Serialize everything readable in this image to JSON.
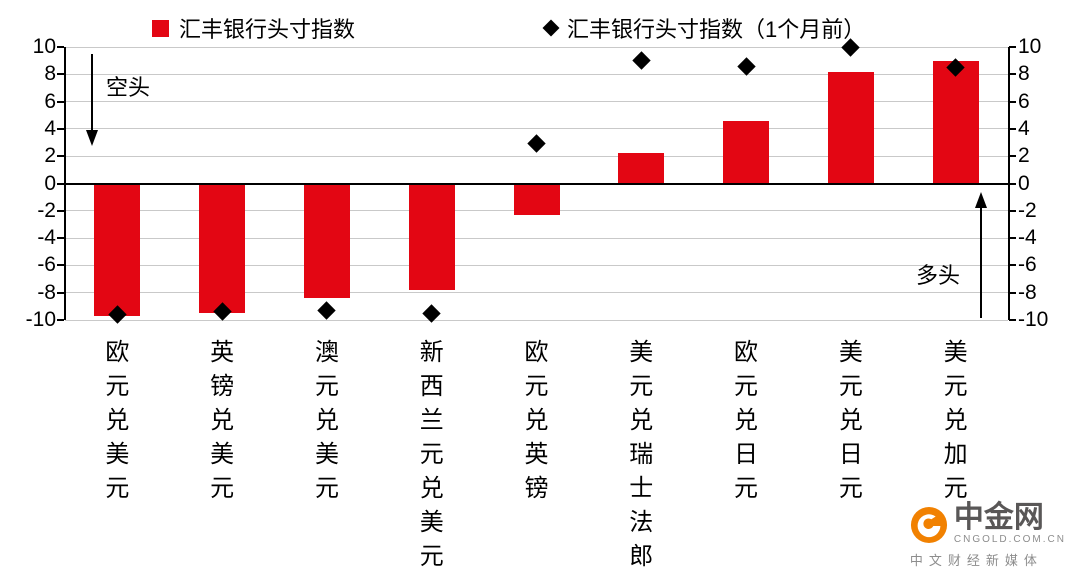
{
  "chart_data": {
    "type": "bar",
    "categories": [
      "欧元兑美元",
      "英镑兑美元",
      "澳元兑美元",
      "新西兰元兑美元",
      "欧元兑英镑",
      "美元兑瑞士法郎",
      "欧元兑日元",
      "美元兑日元",
      "美元兑加元"
    ],
    "series": [
      {
        "name": "汇丰银行头寸指数",
        "type": "bar",
        "color": "#e30613",
        "values": [
          -9.7,
          -9.5,
          -8.4,
          -7.8,
          -2.3,
          2.2,
          4.6,
          8.2,
          9.0
        ]
      },
      {
        "name": "汇丰银行头寸指数（1个月前）",
        "type": "scatter-diamond",
        "color": "#000000",
        "values": [
          -9.6,
          -9.4,
          -9.3,
          -9.5,
          2.9,
          9.0,
          8.6,
          10.0,
          8.5
        ]
      }
    ],
    "title": "",
    "xlabel": "",
    "ylabel": "",
    "ylim": [
      -10,
      10
    ],
    "yticks": [
      10,
      8,
      6,
      4,
      2,
      0,
      -2,
      -4,
      -6,
      -8,
      -10
    ],
    "grid": true,
    "legend_position": "top",
    "annotations": [
      {
        "text": "空头",
        "arrow": "down",
        "position": "top-left"
      },
      {
        "text": "多头",
        "arrow": "up",
        "position": "bottom-right"
      }
    ]
  },
  "watermark": {
    "brand": "中金网",
    "domain": "CNGOLD.COM.CN",
    "tagline": "中文财经新媒体",
    "accent_color": "#f18101"
  }
}
